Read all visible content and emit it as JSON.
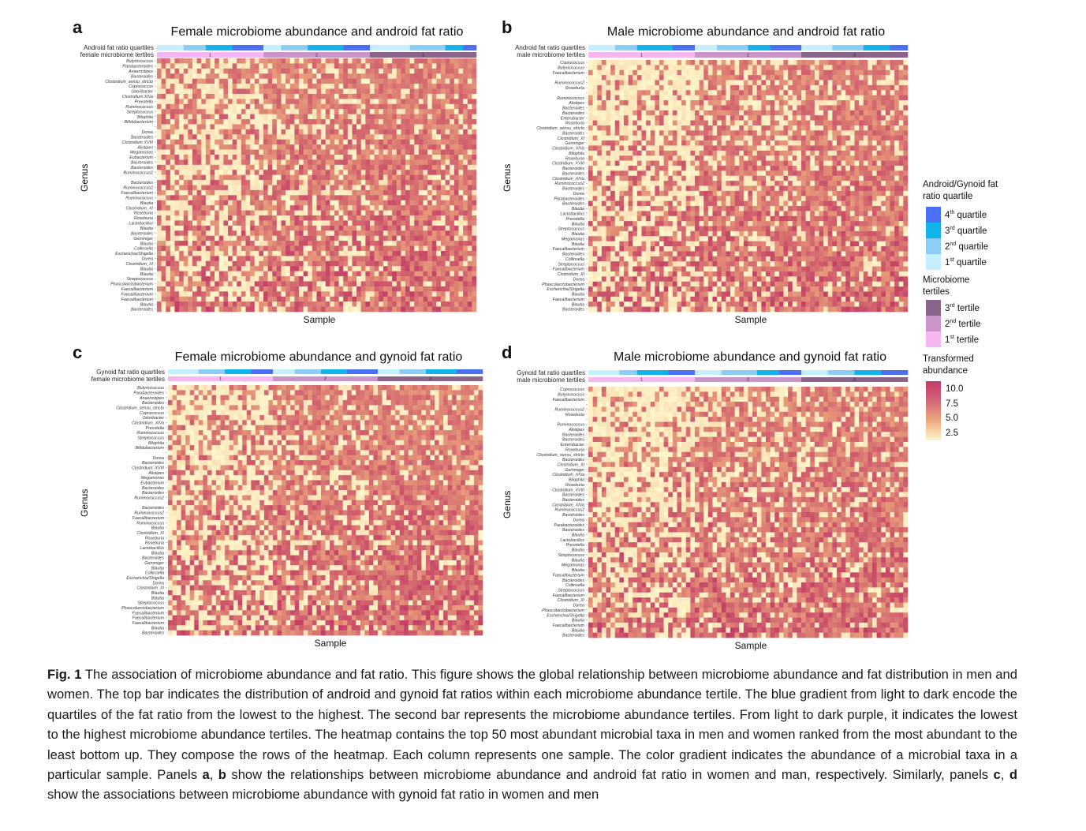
{
  "colors": {
    "quartiles": [
      "#c4efff",
      "#8ccdf5",
      "#10b4ea",
      "#4a6ff5"
    ],
    "tertiles": [
      "#f5b7f2",
      "#c994c8",
      "#8a6488"
    ],
    "abundance_low": "#fff7cc",
    "abundance_mid": "#eba57c",
    "abundance_high": "#c23b66"
  },
  "legend": {
    "quartile_title": "Android/Gynoid fat ratio quartile",
    "quartiles": [
      {
        "num": "4",
        "sup": "th",
        "text": "quartile"
      },
      {
        "num": "3",
        "sup": "rd",
        "text": "quartile"
      },
      {
        "num": "2",
        "sup": "nd",
        "text": "quartile"
      },
      {
        "num": "1",
        "sup": "st",
        "text": "quartile"
      }
    ],
    "tertile_title": "Microbiome tertiles",
    "tertiles": [
      {
        "num": "3",
        "sup": "rd",
        "text": "tertile"
      },
      {
        "num": "2",
        "sup": "nd",
        "text": "tertile"
      },
      {
        "num": "1",
        "sup": "st",
        "text": "tertile"
      }
    ],
    "abundance_title": "Transformed abundance",
    "abundance_ticks": [
      "10.0",
      "7.5",
      "5.0",
      "2.5"
    ]
  },
  "chart_data": [
    {
      "type": "heatmap",
      "panel": "a",
      "title": "Female microbiome abundance and android fat ratio",
      "xlabel": "Sample",
      "ylabel": "Genus",
      "annotation_labels": [
        "Android fat ratio quartiles",
        "female microbiome tertiles"
      ],
      "tertile_labels": [
        "1",
        "2",
        "3"
      ],
      "quartile_counts_per_tertile": [
        [
          6,
          5,
          6,
          7
        ],
        [
          4,
          6,
          8,
          6
        ],
        [
          9,
          8,
          4,
          3
        ]
      ],
      "rows": [
        "Butyricicoccus",
        "Parabacteroides",
        "Anaerostipes",
        "Bacteroides",
        "Clostridium_sensu_stricto",
        "Coprococcus",
        "Odoribacter",
        "Clostridium XIVa",
        "Prevotella",
        "Ruminococcus",
        "Streptococcus",
        "Bilophila",
        "Bifidobacterium",
        "",
        "Dorea",
        "Bacteroides",
        "Clostridium XVIII",
        "Alistipes",
        "Megamonas",
        "Eubacterium",
        "Bacteroides",
        "Bacteroides",
        "Ruminococcus2",
        "",
        "Bacteroides",
        "Ruminococcus2",
        "Faecalibacterium",
        "Ruminococcus",
        "Blautia",
        "Clostridium_XI",
        "Roseburia",
        "Roseburia",
        "Lactobacillus",
        "Blautia",
        "Bacteroides",
        "Gemmiger",
        "Blautia",
        "Collinsella",
        "Escherichia/Shigella",
        "Dorea",
        "Clostridium_XI",
        "Blautia",
        "Blautia",
        "Streptococcus",
        "Phascolarctobacterium",
        "Faecalibacterium",
        "Faecalibacterium",
        "Faecalibacterium",
        "Blautia",
        "Bacteroides"
      ],
      "color_range": [
        0,
        11
      ]
    },
    {
      "type": "heatmap",
      "panel": "b",
      "title": "Male microbiome abundance and android fat ratio",
      "xlabel": "Sample",
      "ylabel": "Genus",
      "annotation_labels": [
        "Android fat ratio quartiles",
        "male microbiome tertiles"
      ],
      "tertile_labels": [
        "1",
        "2",
        "3"
      ],
      "quartile_counts_per_tertile": [
        [
          6,
          5,
          8,
          5
        ],
        [
          5,
          7,
          5,
          7
        ],
        [
          7,
          7,
          6,
          4
        ]
      ],
      "rows": [
        "Coprococcus",
        "Butyricicoccus",
        "Faecalibacterium",
        "",
        "Ruminococcus2",
        "Roseburia",
        "",
        "Ruminococcus",
        "Alistipes",
        "Bacteroides",
        "Bacteroides",
        "Enterobacter",
        "Roseburia",
        "Clostridium_sensu_stricto",
        "Bacteroides",
        "Clostridium_XI",
        "Gemmiger",
        "Clostridium_XIVa",
        "Bilophila",
        "Roseburia",
        "Clostridium_XVIII",
        "Bacteroides",
        "Bacteroides",
        "Clostridium_XIVa",
        "Ruminococcus2",
        "Bacteroides",
        "Dorea",
        "Parabacteroides",
        "Bacteroides",
        "Blautia",
        "Lactobacillus",
        "Prevotella",
        "Blautia",
        "Streptococcus",
        "Blautia",
        "Megamonas",
        "Blautia",
        "Faecalibacterium",
        "Bacteroides",
        "Collinsella",
        "Streptococcus",
        "Faecalibacterium",
        "Clostridium_XI",
        "Dorea",
        "Phascolarctobacterium",
        "Escherichia/Shigella",
        "Blautia",
        "Faecalibacterium",
        "Blautia",
        "Bacteroides"
      ],
      "color_range": [
        0,
        11
      ]
    },
    {
      "type": "heatmap",
      "panel": "c",
      "title": "Female microbiome abundance and gynoid fat ratio",
      "xlabel": "Sample",
      "ylabel": "Genus",
      "annotation_labels": [
        "Gynoid fat ratio quartiles",
        "female microbiome tertiles"
      ],
      "tertile_labels": [
        "1",
        "2",
        "3"
      ],
      "quartile_counts_per_tertile": [
        [
          7,
          6,
          6,
          5
        ],
        [
          5,
          6,
          6,
          7
        ],
        [
          5,
          6,
          7,
          6
        ]
      ],
      "rows": [
        "Butyricicoccus",
        "Parabacteroides",
        "Anaerostipes",
        "Bacteroides",
        "Clostridium_sensu_stricto",
        "Coprococcus",
        "Odoribacter",
        "Clostridium_XIVa",
        "Prevotella",
        "Ruminococcus",
        "Streptococcus",
        "Bilophila",
        "Bifidobacterium",
        "",
        "Dorea",
        "Bacteroides",
        "Clostridium_XVIII",
        "Alistipes",
        "Megamonas",
        "Eubacterium",
        "Bacteroides",
        "Bacteroides",
        "Ruminococcus2",
        "",
        "Bacteroides",
        "Ruminococcus2",
        "Faecalibacterium",
        "Ruminococcus",
        "Blautia",
        "Clostridium_XI",
        "Roseburia",
        "Roseburia",
        "Lactobacillus",
        "Blautia",
        "Bacteroides",
        "Gemmiger",
        "Blautia",
        "Collinsella",
        "Escherichia/Shigella",
        "Dorea",
        "Clostridium_XI",
        "Blautia",
        "Blautia",
        "Streptococcus",
        "Phascolarctobacterium",
        "Faecalibacterium",
        "Faecalibacterium",
        "Faecalibacterium",
        "Blautia",
        "Bacteroides"
      ],
      "color_range": [
        0,
        11
      ]
    },
    {
      "type": "heatmap",
      "panel": "d",
      "title": "Male microbiome abundance and gynoid fat ratio",
      "xlabel": "Sample",
      "ylabel": "Genus",
      "annotation_labels": [
        "Gynoid fat ratio quartiles",
        "male microbiome tertiles"
      ],
      "tertile_labels": [
        "1",
        "2",
        "3"
      ],
      "quartile_counts_per_tertile": [
        [
          7,
          4,
          7,
          6
        ],
        [
          6,
          8,
          5,
          5
        ],
        [
          6,
          6,
          6,
          6
        ]
      ],
      "rows": [
        "Coprococcus",
        "Butyricicoccus",
        "Faecalibacterium",
        "",
        "Ruminococcus2",
        "Roseburia",
        "",
        "Ruminococcus",
        "Alistipes",
        "Bacteroides",
        "Bacteroides",
        "Enterobacter",
        "Roseburia",
        "Clostridium_sensu_stricto",
        "Bacteroides",
        "Clostridium_XI",
        "Gemmiger",
        "Clostridium_XIVa",
        "Bilophila",
        "Roseburia",
        "Clostridium_XVIII",
        "Bacteroides",
        "Bacteroides",
        "Clostridium_XIVa",
        "Ruminococcus2",
        "Bacteroides",
        "Dorea",
        "Parabacteroides",
        "Bacteroides",
        "Blautia",
        "Lactobacillus",
        "Prevotella",
        "Blautia",
        "Streptococcus",
        "Blautia",
        "Megamonas",
        "Blautia",
        "Faecalibacterium",
        "Bacteroides",
        "Collinsella",
        "Streptococcus",
        "Faecalibacterium",
        "Clostridium_XI",
        "Dorea",
        "Phascolarctobacterium",
        "Escherichia/Shigella",
        "Blautia",
        "Faecalibacterium",
        "Blautia",
        "Bacteroides"
      ],
      "color_range": [
        0,
        11
      ]
    }
  ],
  "caption": {
    "label": "Fig. 1",
    "p1": " The association of microbiome abundance and fat ratio. This figure shows the global relationship between microbiome abundance and fat distribution in men and women. The top bar indicates the distribution of android and gynoid fat ratios within each microbiome abundance tertile. The blue gradient from light to dark encode the quartiles of the fat ratio from the lowest to the highest. The second bar represents the microbiome abundance tertiles. From light to dark purple, it indicates the lowest to the highest microbiome abundance tertiles. The heatmap contains the top 50 most abundant microbial  taxa in men and women ranked from the most abundant to the least bottom up. They compose the rows of the heatmap. Each column represents one sample. The color gradient indicates the abundance of a microbial  taxa in a particular sample. Panels ",
    "b1": "a",
    "p2": ", ",
    "b2": "b",
    "p3": " show the relationships between microbiome abundance and android fat ratio in women and man, respectively. Similarly, panels ",
    "b3": "c",
    "p4": ", ",
    "b4": "d",
    "p5": " show the associations between microbiome abundance with gynoid fat ratio in women and men"
  }
}
